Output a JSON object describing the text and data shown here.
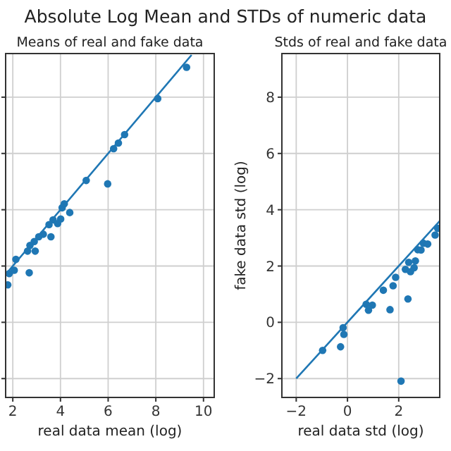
{
  "chart_data": [
    {
      "type": "scatter",
      "title": "Means of real and fake data",
      "annotations": [
        "Absolute Log Mean and STDs of numeric data"
      ],
      "xlabel": "real data mean (log)",
      "xlim": [
        1.7,
        10.45
      ],
      "xticks": [
        2,
        4,
        6,
        8,
        10
      ],
      "ylim": [
        -2.67,
        9.55
      ],
      "yticks": [
        -2,
        0,
        2,
        4,
        6,
        8
      ],
      "tick_labels": "x",
      "grid": true,
      "series": [
        {
          "marker": "circle",
          "color": "#1f77b4",
          "x": [
            9.29,
            8.08,
            6.69,
            6.43,
            6.23,
            5.08,
            5.98,
            4.16,
            4.07,
            4.39,
            3.69,
            4.01,
            3.52,
            3.88,
            3.6,
            3.28,
            3.09,
            2.9,
            2.94,
            2.62,
            2.72,
            2.13,
            2.06,
            1.85,
            1.79,
            2.69
          ],
          "values": [
            9.06,
            7.95,
            6.67,
            6.37,
            6.17,
            5.04,
            4.92,
            4.21,
            4.07,
            3.9,
            3.64,
            3.67,
            3.47,
            3.51,
            3.04,
            3.13,
            3.04,
            2.87,
            2.53,
            2.53,
            2.73,
            2.24,
            1.85,
            1.73,
            1.33,
            1.76
          ]
        },
        {
          "type": "line",
          "color": "#1f77b4",
          "x": [
            1.7,
            9.5
          ],
          "values": [
            1.7,
            9.5
          ]
        }
      ]
    },
    {
      "type": "scatter",
      "title": "Stds of real and fake data",
      "xlabel": "real data std (log)",
      "ylabel": "fake data std (log)",
      "xlim": [
        -2.56,
        3.6
      ],
      "xticks": [
        {
          "value": -2,
          "label": "−2"
        },
        0,
        2
      ],
      "ylim": [
        -2.67,
        9.55
      ],
      "yticks": [
        {
          "value": -2,
          "label": "−2"
        },
        0,
        2,
        4,
        6,
        8
      ],
      "grid": true,
      "series": [
        {
          "marker": "circle",
          "color": "#1f77b4",
          "x": [
            -0.97,
            -0.27,
            -0.17,
            -0.14,
            0.73,
            0.82,
            0.97,
            1.4,
            1.66,
            1.78,
            1.88,
            2.09,
            2.26,
            2.36,
            2.39,
            2.46,
            2.6,
            2.65,
            2.74,
            2.87,
            2.96,
            3.13,
            3.42,
            3.52
          ],
          "values": [
            -1.0,
            -0.87,
            -0.19,
            -0.43,
            0.64,
            0.43,
            0.61,
            1.14,
            0.45,
            1.3,
            1.6,
            -2.09,
            1.88,
            0.83,
            2.13,
            1.8,
            1.94,
            2.18,
            2.58,
            2.57,
            2.81,
            2.78,
            3.1,
            3.34
          ]
        },
        {
          "type": "line",
          "color": "#1f77b4",
          "x": [
            -2,
            3.6
          ],
          "values": [
            -2,
            3.6
          ]
        }
      ]
    }
  ]
}
